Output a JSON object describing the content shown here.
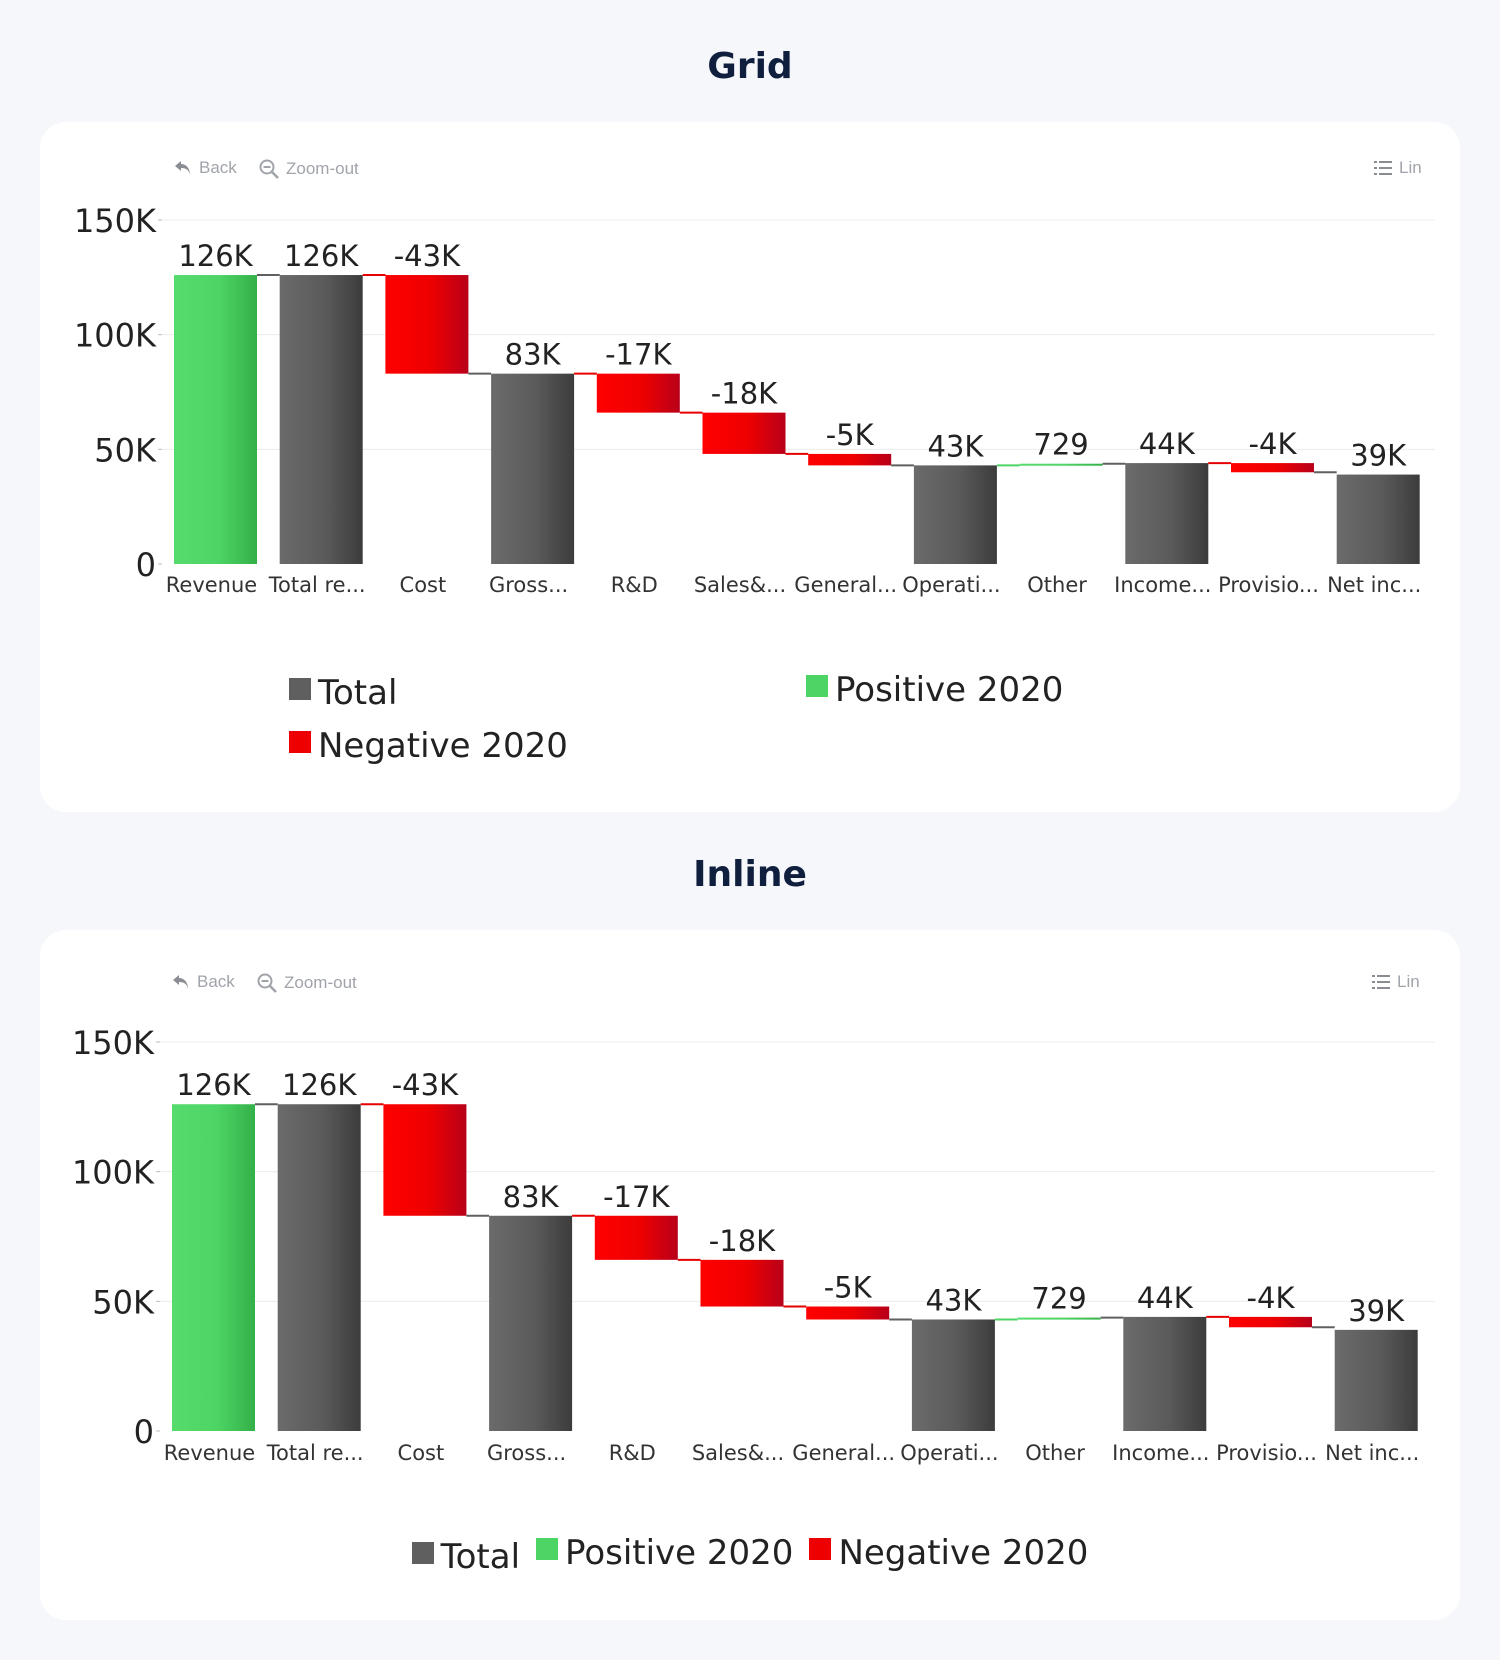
{
  "charts": [
    {
      "title": "Grid",
      "legend_layout": "grid"
    },
    {
      "title": "Inline",
      "legend_layout": "inline"
    }
  ],
  "toolbar": {
    "back_label": "Back",
    "zoom_out_label": "Zoom-out",
    "menu_label": "Lin",
    "icons": [
      "back-arrow-icon",
      "zoom-out-icon",
      "list-icon"
    ]
  },
  "legend": [
    {
      "name": "Total",
      "color": "#5f5f5f"
    },
    {
      "name": "Positive 2020",
      "color": "#4cd464"
    },
    {
      "name": "Negative 2020",
      "color": "#ee0000"
    }
  ],
  "chart_data": [
    {
      "type": "bar",
      "subtype": "waterfall",
      "title": "Grid",
      "categories": [
        "Revenue",
        "Total re...",
        "Cost",
        "Gross...",
        "R&D",
        "Sales&...",
        "General...",
        "Operati...",
        "Other",
        "Income...",
        "Provisio...",
        "Net inc..."
      ],
      "kinds": [
        "positive",
        "total",
        "negative",
        "total",
        "negative",
        "negative",
        "negative",
        "total",
        "positive",
        "total",
        "negative",
        "total"
      ],
      "values": [
        126000,
        126000,
        -43000,
        83000,
        -17000,
        -18000,
        -5000,
        43000,
        729,
        44000,
        -4000,
        39000
      ],
      "data_labels": [
        "126K",
        "126K",
        "-43K",
        "83K",
        "-17K",
        "-18K",
        "-5K",
        "43K",
        "729",
        "44K",
        "-4K",
        "39K"
      ],
      "ylim": [
        0,
        150000
      ],
      "yticks": [
        0,
        50000,
        100000,
        150000
      ],
      "ytick_labels": [
        "0",
        "50K",
        "100K",
        "150K"
      ],
      "grid": true,
      "legend": "bottom, grid layout"
    },
    {
      "type": "bar",
      "subtype": "waterfall",
      "title": "Inline",
      "categories": [
        "Revenue",
        "Total re...",
        "Cost",
        "Gross...",
        "R&D",
        "Sales&...",
        "General...",
        "Operati...",
        "Other",
        "Income...",
        "Provisio...",
        "Net inc..."
      ],
      "kinds": [
        "positive",
        "total",
        "negative",
        "total",
        "negative",
        "negative",
        "negative",
        "total",
        "positive",
        "total",
        "negative",
        "total"
      ],
      "values": [
        126000,
        126000,
        -43000,
        83000,
        -17000,
        -18000,
        -5000,
        43000,
        729,
        44000,
        -4000,
        39000
      ],
      "data_labels": [
        "126K",
        "126K",
        "-43K",
        "83K",
        "-17K",
        "-18K",
        "-5K",
        "43K",
        "729",
        "44K",
        "-4K",
        "39K"
      ],
      "ylim": [
        0,
        150000
      ],
      "yticks": [
        0,
        50000,
        100000,
        150000
      ],
      "ytick_labels": [
        "0",
        "50K",
        "100K",
        "150K"
      ],
      "grid": true,
      "legend": "bottom, inline layout"
    }
  ]
}
